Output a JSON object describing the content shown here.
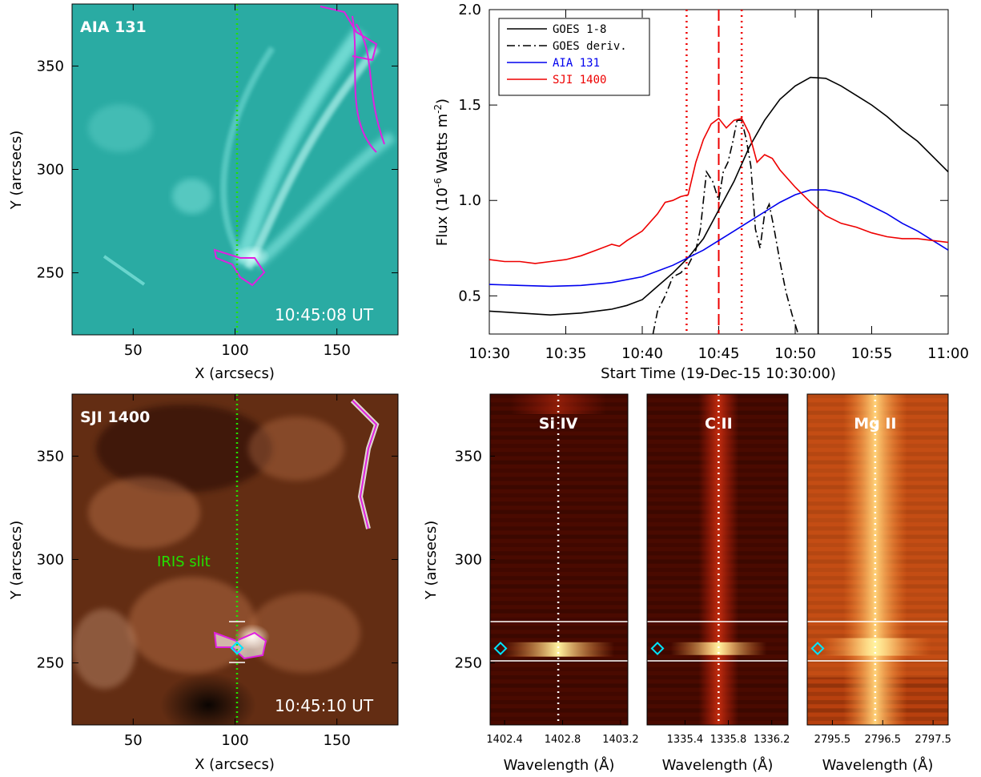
{
  "panels": {
    "aia": {
      "title": "AIA 131",
      "time": "10:45:08 UT",
      "xlabel": "X (arcsecs)",
      "ylabel": "Y (arcsecs)",
      "xticks": [
        50,
        100,
        150
      ],
      "yticks": [
        250,
        300,
        350
      ],
      "xlim": [
        20,
        180
      ],
      "ylim": [
        220,
        380
      ],
      "bg_color": "#2fb5ad",
      "highlight_color": "#a8fff8"
    },
    "sji": {
      "title": "SJI 1400",
      "time": "10:45:10 UT",
      "slit_label": "IRIS slit",
      "xlabel": "X (arcsecs)",
      "ylabel": "Y (arcsecs)",
      "xticks": [
        50,
        100,
        150
      ],
      "yticks": [
        250,
        300,
        350
      ],
      "xlim": [
        20,
        180
      ],
      "ylim": [
        220,
        380
      ],
      "bg_color": "#7a3a1a",
      "highlight_color": "#ffe0c8"
    }
  },
  "chart_data": [
    {
      "type": "line",
      "xlabel": "Start Time (19-Dec-15 10:30:00)",
      "ylabel": "Flux (10",
      "ylabel_exp": "-6",
      "ylabel_tail": " Watts m",
      "ylabel_exp2": "-2",
      "ylabel_end": ")",
      "xlim": [
        0,
        30
      ],
      "ylim": [
        0.3,
        2.0
      ],
      "xticks": [
        0,
        5,
        10,
        15,
        20,
        25,
        30
      ],
      "xtick_labels": [
        "10:30",
        "10:35",
        "10:40",
        "10:45",
        "10:50",
        "10:55",
        "11:00"
      ],
      "yticks": [
        0.5,
        1.0,
        1.5,
        2.0
      ],
      "ytick_labels": [
        "0.5",
        "1.0",
        "1.5",
        "2.0"
      ],
      "legend": "top-left",
      "vlines": {
        "red_dotted": [
          12.9,
          16.5
        ],
        "red_dashed": [
          15.0
        ],
        "black_solid": [
          21.5
        ]
      },
      "series": [
        {
          "name": "GOES 1-8",
          "color": "#000000",
          "style": "solid",
          "x": [
            0,
            2,
            4,
            6,
            8,
            9,
            10,
            11,
            12,
            13,
            14,
            15,
            16,
            17,
            18,
            19,
            20,
            21,
            22,
            23,
            24,
            25,
            26,
            27,
            28,
            29,
            30
          ],
          "y": [
            0.42,
            0.41,
            0.4,
            0.41,
            0.43,
            0.45,
            0.48,
            0.55,
            0.62,
            0.7,
            0.8,
            0.95,
            1.1,
            1.28,
            1.42,
            1.53,
            1.6,
            1.645,
            1.64,
            1.6,
            1.55,
            1.5,
            1.44,
            1.37,
            1.31,
            1.23,
            1.15
          ]
        },
        {
          "name": "GOES deriv.",
          "color": "#000000",
          "style": "dashdot",
          "x": [
            10.7,
            11.0,
            11.5,
            12.0,
            12.5,
            13.0,
            13.5,
            13.8,
            14.2,
            14.6,
            15.0,
            15.3,
            15.6,
            15.9,
            16.2,
            16.5,
            16.8,
            17.1,
            17.4,
            17.7,
            18.0,
            18.3,
            18.6,
            19.0,
            19.4,
            19.8,
            20.2
          ],
          "y": [
            0.3,
            0.42,
            0.5,
            0.6,
            0.62,
            0.66,
            0.74,
            0.85,
            1.15,
            1.1,
            1.0,
            1.15,
            1.2,
            1.3,
            1.42,
            1.42,
            1.32,
            1.18,
            0.85,
            0.75,
            0.93,
            0.98,
            0.86,
            0.68,
            0.52,
            0.4,
            0.3
          ]
        },
        {
          "name": "AIA 131",
          "color": "#0000ee",
          "style": "solid",
          "x": [
            0,
            2,
            4,
            6,
            8,
            10,
            11,
            12,
            13,
            14,
            15,
            16,
            17,
            18,
            19,
            20,
            21,
            22,
            23,
            24,
            25,
            26,
            27,
            28,
            29,
            30
          ],
          "y": [
            0.56,
            0.555,
            0.55,
            0.555,
            0.57,
            0.6,
            0.63,
            0.66,
            0.7,
            0.74,
            0.79,
            0.84,
            0.89,
            0.94,
            0.99,
            1.03,
            1.055,
            1.055,
            1.04,
            1.01,
            0.97,
            0.93,
            0.88,
            0.84,
            0.79,
            0.74
          ]
        },
        {
          "name": "SJI 1400",
          "color": "#ee0000",
          "style": "solid",
          "x": [
            0,
            1,
            2,
            3,
            4,
            5,
            6,
            7,
            8,
            8.5,
            9,
            10,
            11,
            11.5,
            12,
            12.5,
            13,
            13.5,
            14,
            14.5,
            15,
            15.5,
            16,
            16.5,
            17,
            17.5,
            18,
            18.5,
            19,
            20,
            21,
            22,
            23,
            24,
            25,
            26,
            27,
            28,
            29,
            30
          ],
          "y": [
            0.69,
            0.68,
            0.68,
            0.67,
            0.68,
            0.69,
            0.71,
            0.74,
            0.77,
            0.76,
            0.79,
            0.84,
            0.93,
            0.99,
            1.0,
            1.02,
            1.03,
            1.2,
            1.32,
            1.4,
            1.43,
            1.38,
            1.42,
            1.43,
            1.35,
            1.2,
            1.24,
            1.22,
            1.16,
            1.07,
            0.99,
            0.92,
            0.88,
            0.86,
            0.83,
            0.81,
            0.8,
            0.8,
            0.79,
            0.78
          ]
        }
      ]
    },
    {
      "type": "heatmap",
      "title": "Si IV",
      "xlabel": "Wavelength (Å)",
      "ylabel": "Y (arcsecs)",
      "xlim": [
        1402.3,
        1403.25
      ],
      "xticks": [
        1402.4,
        1402.8,
        1403.2
      ],
      "xtick_labels": [
        "1402.4",
        "1402.8",
        "1403.2"
      ],
      "ylim": [
        220,
        380
      ],
      "yticks": [
        250,
        300,
        350
      ],
      "line_center": 1402.77,
      "hlines": [
        251,
        270
      ],
      "marker_y": 257
    },
    {
      "type": "heatmap",
      "title": "C II",
      "xlabel": "Wavelength (Å)",
      "xlim": [
        1335.05,
        1336.35
      ],
      "xticks": [
        1335.4,
        1335.8,
        1336.2
      ],
      "xtick_labels": [
        "1335.4",
        "1335.8",
        "1336.2"
      ],
      "ylim": [
        220,
        380
      ],
      "line_center": 1335.71,
      "hlines": [
        251,
        270
      ],
      "marker_y": 257
    },
    {
      "type": "heatmap",
      "title": "Mg II",
      "xlabel": "Wavelength (Å)",
      "xlim": [
        2795.0,
        2797.8
      ],
      "xticks": [
        2795.5,
        2796.5,
        2797.5
      ],
      "xtick_labels": [
        "2795.5",
        "2796.5",
        "2797.5"
      ],
      "ylim": [
        220,
        380
      ],
      "line_center": 2796.35,
      "hlines": [
        251,
        270
      ],
      "marker_y": 257
    }
  ]
}
